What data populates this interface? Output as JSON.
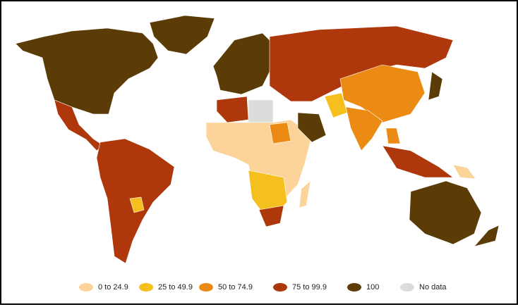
{
  "legend": [
    {
      "label": "0 to 24.9",
      "color": "#fcd49a"
    },
    {
      "label": "25 to 49.9",
      "color": "#f5c01d"
    },
    {
      "label": "50 to 74.9",
      "color": "#eb8b14"
    },
    {
      "label": "75 to 99.9",
      "color": "#ae380b"
    },
    {
      "label": "100",
      "color": "#5b3c07"
    },
    {
      "label": "No data",
      "color": "#dcdcdc"
    }
  ]
}
